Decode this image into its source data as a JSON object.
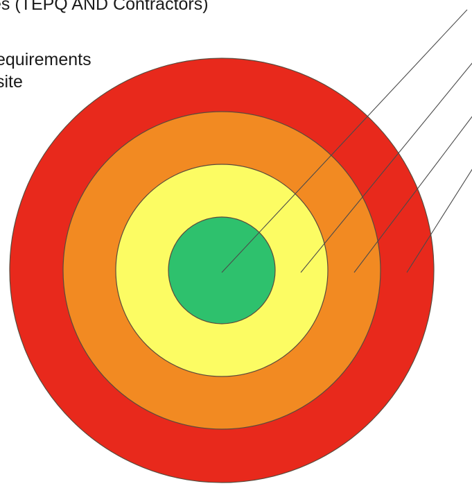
{
  "text": {
    "title": "es (TEPQ AND Contractors)",
    "line1": "equirements",
    "line2": "site"
  },
  "rings": [
    {
      "name": "outer",
      "fill": "#e8291c"
    },
    {
      "name": "second",
      "fill": "#f28a22"
    },
    {
      "name": "third",
      "fill": "#fcfc63"
    },
    {
      "name": "center",
      "fill": "#2ec16d"
    }
  ],
  "colors": {
    "stroke": "#5a4a3c",
    "leader": "#4a4a4a"
  }
}
